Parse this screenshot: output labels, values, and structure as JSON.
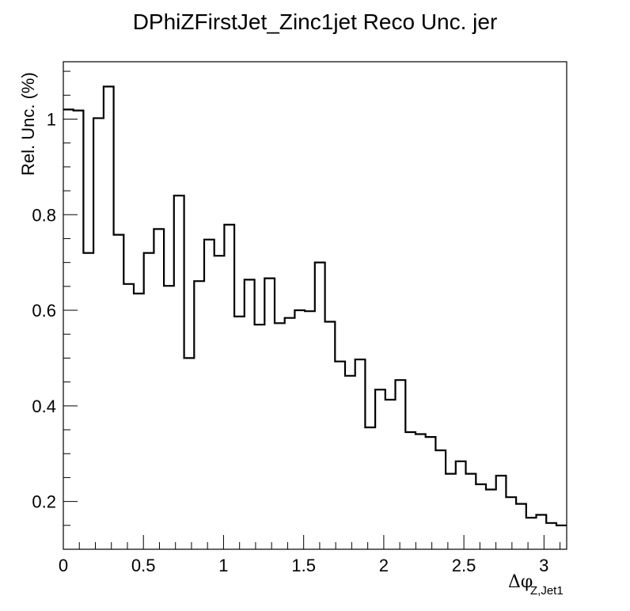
{
  "chart_data": {
    "type": "line",
    "style": "step-histogram",
    "title": "DPhiZFirstJet_Zinc1jet Reco Unc. jer",
    "ylabel": "Rel. Unc. (%)",
    "xlabel": "Δφ",
    "xlabel_sub": "Z,Jet1",
    "xlim": [
      0,
      3.1416
    ],
    "ylim": [
      0.1,
      1.12
    ],
    "x_ticks": [
      0,
      0.5,
      1,
      1.5,
      2,
      2.5,
      3
    ],
    "x_tick_labels": [
      "0",
      "0.5",
      "1",
      "1.5",
      "2",
      "2.5",
      "3"
    ],
    "y_ticks": [
      0.2,
      0.4,
      0.6,
      0.8,
      1
    ],
    "y_tick_labels": [
      "0.2",
      "0.4",
      "0.6",
      "0.8",
      "1"
    ],
    "grid": false,
    "line_color": "#000000",
    "bin_width": 0.0628,
    "values": [
      1.02,
      1.018,
      0.72,
      1.002,
      1.068,
      0.758,
      0.655,
      0.635,
      0.72,
      0.77,
      0.651,
      0.84,
      0.5,
      0.661,
      0.748,
      0.714,
      0.779,
      0.587,
      0.664,
      0.57,
      0.667,
      0.573,
      0.584,
      0.6,
      0.598,
      0.7,
      0.576,
      0.493,
      0.463,
      0.497,
      0.355,
      0.434,
      0.413,
      0.454,
      0.345,
      0.341,
      0.335,
      0.307,
      0.258,
      0.284,
      0.258,
      0.236,
      0.225,
      0.254,
      0.209,
      0.195,
      0.166,
      0.172,
      0.155,
      0.15
    ]
  }
}
